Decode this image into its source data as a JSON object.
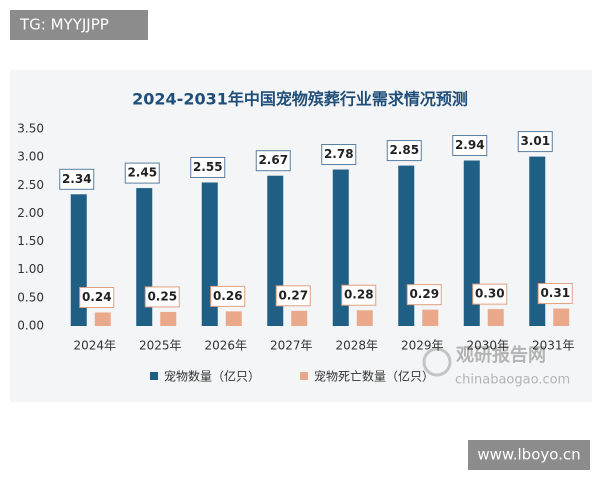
{
  "overlay": {
    "top_left": "TG: MYYJJPP",
    "bottom_right": "www.lboyo.cn"
  },
  "chart_data": {
    "type": "bar",
    "title": "2024-2031年中国宠物殡葬行业需求情况预测",
    "categories": [
      "2024年",
      "2025年",
      "2026年",
      "2027年",
      "2028年",
      "2029年",
      "2030年",
      "2031年"
    ],
    "series": [
      {
        "name": "宠物数量（亿只）",
        "color": "#1f5f86",
        "values": [
          2.34,
          2.45,
          2.55,
          2.67,
          2.78,
          2.85,
          2.94,
          3.01
        ]
      },
      {
        "name": "宠物死亡数量（亿只）",
        "color": "#eaa98b",
        "values": [
          0.24,
          0.25,
          0.26,
          0.27,
          0.28,
          0.29,
          0.3,
          0.31
        ],
        "value_labels": [
          "0.24",
          "0.25",
          "0.26",
          "0.27",
          "0.28",
          "0.29",
          "0.30",
          "0.31"
        ]
      }
    ],
    "ylim": [
      0,
      3.5
    ],
    "yticks": [
      {
        "value": 0,
        "label": "0.00"
      },
      {
        "value": 0.5,
        "label": "0.50"
      },
      {
        "value": 1,
        "label": "1.00"
      },
      {
        "value": 1.5,
        "label": "1.50"
      },
      {
        "value": 2,
        "label": "2.00"
      },
      {
        "value": 2.5,
        "label": "2.50"
      },
      {
        "value": 3,
        "label": "3.00"
      },
      {
        "value": 3.5,
        "label": "3.50"
      }
    ],
    "grid": false,
    "legend": "bottom",
    "watermark": [
      "观研报告网",
      "chinabaogao.com"
    ]
  }
}
